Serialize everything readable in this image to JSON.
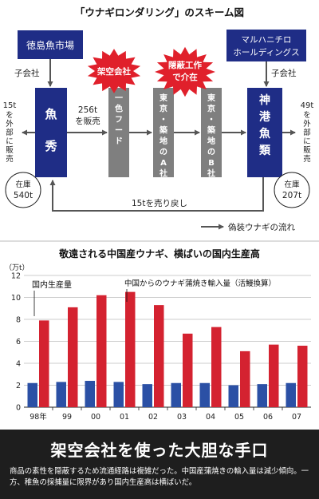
{
  "scheme": {
    "title": "「ウナギロンダリング」のスキーム図",
    "nodes": {
      "tokushima_market": "徳島魚市場",
      "maruha_nichiro": [
        "マルハニチロ",
        "ホールディングス"
      ],
      "uohide": "魚秀",
      "ichi_food": "一色フード",
      "tokyo_a": "東京・築地のA社",
      "tokyo_b": "東京・築地のB社",
      "shinko": "神港魚類"
    },
    "labels": {
      "subsidiary_left": "子会社",
      "subsidiary_right": "子会社",
      "sold_256": [
        "256t",
        "を販売"
      ],
      "sold_out_15": [
        "15t",
        "を外部に販売"
      ],
      "sold_out_49": [
        "49t",
        "を外部に販売"
      ],
      "inventory_left": [
        "在庫",
        "540t"
      ],
      "inventory_right": [
        "在庫",
        "207t"
      ],
      "sold_back": "15tを売り戻し",
      "fictitious_company": "架空会社",
      "concealment": [
        "隠蔽工作",
        "で介在"
      ],
      "legend": "偽装ウナギの流れ"
    },
    "colors": {
      "navy": "#1f2d86",
      "gray": "#7f7f7f",
      "red": "#e0202b",
      "arrow": "#555555"
    }
  },
  "chart": {
    "title": "敬遠される中国産ウナギ、横ばいの国内生産高",
    "unit": "（万t）",
    "legend_domestic": "国内生産量",
    "legend_import": "中国からのウナギ蒲焼き輸入量（活鰻換算）"
  },
  "chart_data": {
    "type": "bar",
    "categories": [
      "98年",
      "99",
      "00",
      "01",
      "02",
      "03",
      "04",
      "05",
      "06",
      "07"
    ],
    "series": [
      {
        "name": "国内生産量",
        "color": "#2b50a5",
        "values": [
          2.2,
          2.3,
          2.4,
          2.3,
          2.1,
          2.2,
          2.2,
          2.0,
          2.1,
          2.2
        ]
      },
      {
        "name": "中国からのウナギ蒲焼き輸入量（活鰻換算）",
        "color": "#d42230",
        "values": [
          7.9,
          9.1,
          10.2,
          10.5,
          9.3,
          6.7,
          7.3,
          5.1,
          5.7,
          5.6
        ]
      }
    ],
    "y_ticks": [
      0,
      2,
      4,
      6,
      8,
      10,
      12
    ],
    "ylim": [
      0,
      12
    ],
    "grid": true
  },
  "footer": {
    "title": "架空会社を使った大胆な手口",
    "caption": "商品の素性を隠蔽するため流通経路は複雑だった。中国産蒲焼きの輸入量は減少傾向。一方、稚魚の採捕量に限界があり国内生産高は横ばいだ。"
  }
}
